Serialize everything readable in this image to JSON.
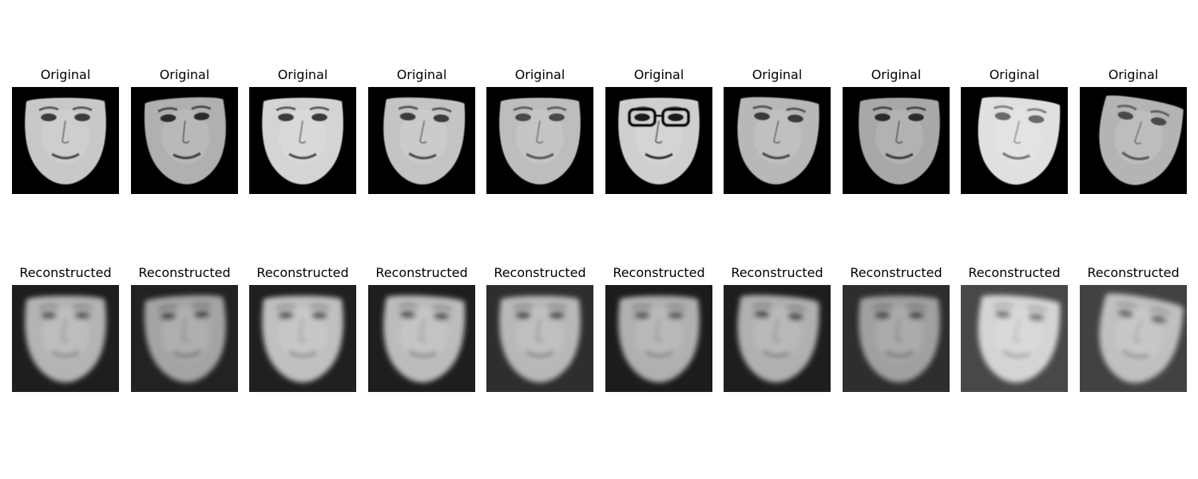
{
  "figure": {
    "rows": [
      {
        "row": "original",
        "faces": [
          {
            "title": "Original",
            "bg": "#000000",
            "face": "#c8c8c8",
            "dark": "#3a3a3a",
            "glasses": false
          },
          {
            "title": "Original",
            "bg": "#000000",
            "face": "#b0b0b0",
            "dark": "#2a2a2a",
            "glasses": false
          },
          {
            "title": "Original",
            "bg": "#000000",
            "face": "#d4d4d4",
            "dark": "#3a3a3a",
            "glasses": false
          },
          {
            "title": "Original",
            "bg": "#000000",
            "face": "#c4c4c4",
            "dark": "#3a3a3a",
            "glasses": false
          },
          {
            "title": "Original",
            "bg": "#000000",
            "face": "#bdbdbd",
            "dark": "#4a4a4a",
            "glasses": false
          },
          {
            "title": "Original",
            "bg": "#000000",
            "face": "#cfcfcf",
            "dark": "#1a1a1a",
            "glasses": true
          },
          {
            "title": "Original",
            "bg": "#000000",
            "face": "#b8b8b8",
            "dark": "#3a3a3a",
            "glasses": false
          },
          {
            "title": "Original",
            "bg": "#000000",
            "face": "#a8a8a8",
            "dark": "#2a2a2a",
            "glasses": false
          },
          {
            "title": "Original",
            "bg": "#000000",
            "face": "#e0e0e0",
            "dark": "#6a6a6a",
            "glasses": false
          },
          {
            "title": "Original",
            "bg": "#000000",
            "face": "#b4b4b4",
            "dark": "#4a4a4a",
            "glasses": false
          }
        ]
      },
      {
        "row": "reconstructed",
        "faces": [
          {
            "title": "Reconstructed",
            "bg": "#1e1e1e",
            "face": "#b4b4b4",
            "dark": "#5a5a5a",
            "glasses": false
          },
          {
            "title": "Reconstructed",
            "bg": "#222222",
            "face": "#a4a4a4",
            "dark": "#4a4a4a",
            "glasses": false
          },
          {
            "title": "Reconstructed",
            "bg": "#202020",
            "face": "#c0c0c0",
            "dark": "#5a5a5a",
            "glasses": false
          },
          {
            "title": "Reconstructed",
            "bg": "#1e1e1e",
            "face": "#bcbcbc",
            "dark": "#555555",
            "glasses": false
          },
          {
            "title": "Reconstructed",
            "bg": "#2e2e2e",
            "face": "#b8b8b8",
            "dark": "#4e4e4e",
            "glasses": false
          },
          {
            "title": "Reconstructed",
            "bg": "#1c1c1c",
            "face": "#b0b0b0",
            "dark": "#5a5a5a",
            "glasses": false
          },
          {
            "title": "Reconstructed",
            "bg": "#1e1e1e",
            "face": "#b0b0b0",
            "dark": "#4e4e4e",
            "glasses": false
          },
          {
            "title": "Reconstructed",
            "bg": "#2e2e2e",
            "face": "#a0a0a0",
            "dark": "#4a4a4a",
            "glasses": false
          },
          {
            "title": "Reconstructed",
            "bg": "#484848",
            "face": "#d4d4d4",
            "dark": "#7a7a7a",
            "glasses": false
          },
          {
            "title": "Reconstructed",
            "bg": "#424242",
            "face": "#c0c0c0",
            "dark": "#6a6a6a",
            "glasses": false
          }
        ]
      }
    ]
  }
}
